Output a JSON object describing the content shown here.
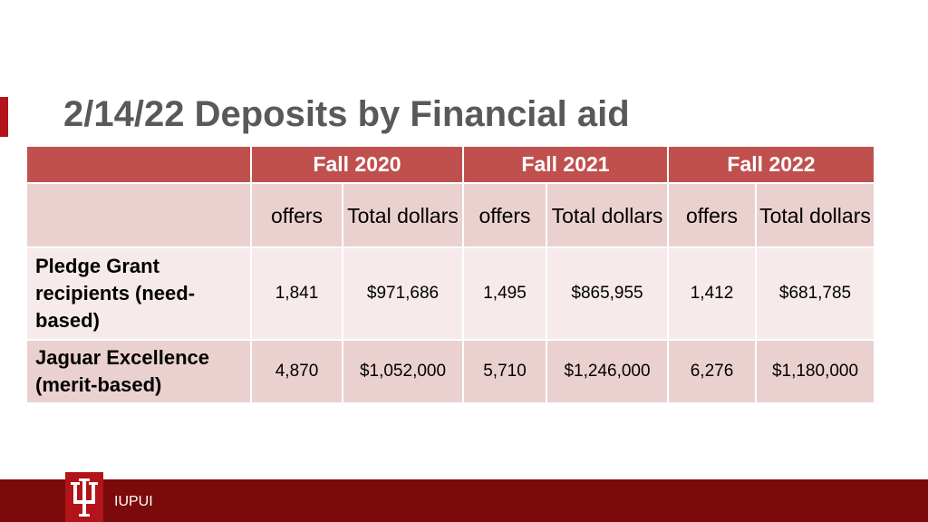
{
  "title": "2/14/22 Deposits by Financial aid",
  "table": {
    "group_headers": [
      "Fall 2020",
      "Fall 2021",
      "Fall 2022"
    ],
    "sub_headers": {
      "offers": "offers",
      "total_dollars": "Total dollars"
    },
    "rows": [
      {
        "label": "Pledge Grant recipients (need-based)",
        "fall_2020_offers": "1,841",
        "fall_2020_total": "$971,686",
        "fall_2021_offers": "1,495",
        "fall_2021_total": "$865,955",
        "fall_2022_offers": "1,412",
        "fall_2022_total": "$681,785"
      },
      {
        "label": "Jaguar Excellence (merit-based)",
        "fall_2020_offers": "4,870",
        "fall_2020_total": "$1,052,000",
        "fall_2021_offers": "5,710",
        "fall_2021_total": "$1,246,000",
        "fall_2022_offers": "6,276",
        "fall_2022_total": "$1,180,000"
      }
    ]
  },
  "footer": {
    "logo_icon": "trident-icon",
    "text": "IUPUI"
  },
  "colors": {
    "accent": "#b3141a",
    "header_fill": "#c0504d",
    "band_dark": "#ead1d0",
    "band_light": "#f6eaea",
    "footer_fill": "#7a0a0c",
    "title_text": "#595959"
  }
}
